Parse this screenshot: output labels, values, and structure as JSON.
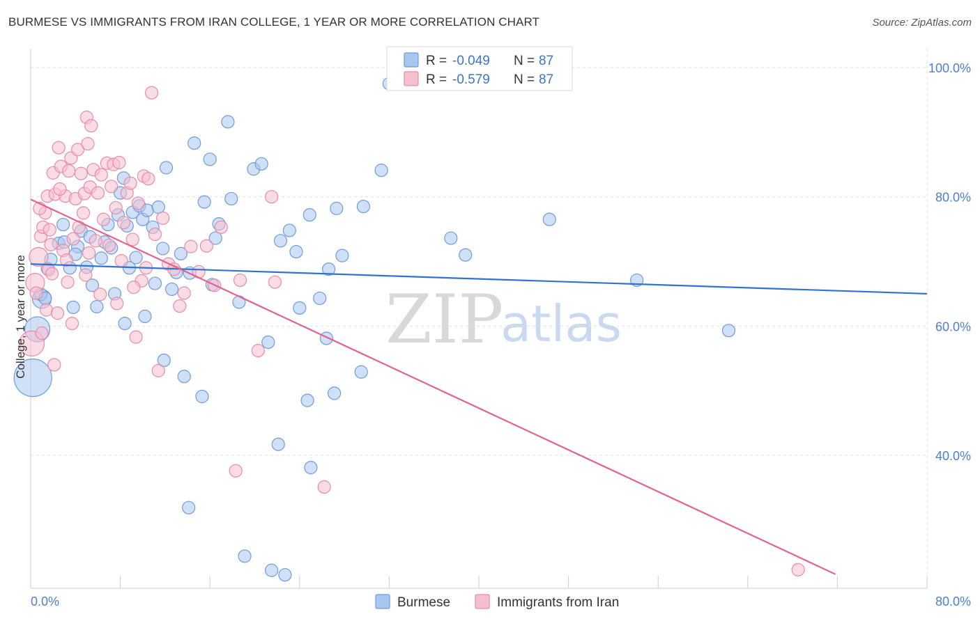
{
  "title": "BURMESE VS IMMIGRANTS FROM IRAN COLLEGE, 1 YEAR OR MORE CORRELATION CHART",
  "source": "Source: ZipAtlas.com",
  "watermark": {
    "zip": "ZIP",
    "atlas": "atlas"
  },
  "colors": {
    "burmese_fill": "#a9c6ee",
    "burmese_stroke": "#6f9bd9",
    "burmese_line": "#2f72d0",
    "iran_fill": "#f6bfd0",
    "iran_stroke": "#e98aa8",
    "iran_line": "#e2628d",
    "grid": "#e0e0e0",
    "axis_text": "#4a7fcf"
  },
  "legend": {
    "r_label": "R =",
    "n_label": "N =",
    "rows": [
      {
        "series": "Burmese",
        "r": "-0.049",
        "n": "87"
      },
      {
        "series": "Immigrants from Iran",
        "r": "-0.579",
        "n": "87"
      }
    ]
  },
  "chart_data": {
    "type": "scatter",
    "title": "BURMESE VS IMMIGRANTS FROM IRAN COLLEGE, 1 YEAR OR MORE CORRELATION CHART",
    "xlabel": "",
    "ylabel": "College, 1 year or more",
    "xlim": [
      0,
      80
    ],
    "ylim": [
      20,
      102
    ],
    "x_ticks": [
      {
        "v": 0,
        "label": "0.0%"
      },
      {
        "v": 80,
        "label": "80.0%"
      }
    ],
    "y_ticks": [
      {
        "v": 100,
        "label": "100.0%"
      },
      {
        "v": 80,
        "label": "80.0%"
      },
      {
        "v": 60,
        "label": "60.0%"
      },
      {
        "v": 40,
        "label": "40.0%"
      }
    ],
    "grid": true,
    "legend_position": "top-center",
    "series": [
      {
        "name": "Burmese",
        "trend": {
          "x": [
            0,
            80
          ],
          "y": [
            69.6,
            65.0
          ]
        },
        "points": [
          [
            0.2,
            52,
            3
          ],
          [
            0.6,
            59.5,
            2
          ],
          [
            1,
            64.2,
            1.5
          ],
          [
            1.5,
            68.9,
            1
          ],
          [
            1.8,
            70.3,
            1
          ],
          [
            2.5,
            72.8,
            1
          ],
          [
            2.9,
            75.7,
            1
          ],
          [
            0.9,
            64.9,
            1
          ],
          [
            1.3,
            64.3,
            1
          ],
          [
            3,
            73,
            1
          ],
          [
            3.5,
            69,
            1
          ],
          [
            4.2,
            72.3,
            1
          ],
          [
            4,
            71.1,
            1
          ],
          [
            4.5,
            74.7,
            1
          ],
          [
            5.3,
            73.8,
            1
          ],
          [
            5,
            69.1,
            1
          ],
          [
            5.5,
            66.3,
            1
          ],
          [
            6.3,
            70.5,
            1
          ],
          [
            6.6,
            73,
            1
          ],
          [
            6.9,
            75.7,
            1
          ],
          [
            7.2,
            72.1,
            1
          ],
          [
            7.5,
            65,
            1
          ],
          [
            7.8,
            77.2,
            1
          ],
          [
            8,
            80.6,
            1
          ],
          [
            8.3,
            82.9,
            1
          ],
          [
            8.6,
            75.5,
            1
          ],
          [
            8.8,
            69,
            1
          ],
          [
            9.1,
            77.6,
            1
          ],
          [
            9.4,
            70.6,
            1
          ],
          [
            9.7,
            78.6,
            1
          ],
          [
            10,
            76.5,
            1
          ],
          [
            10.4,
            77.9,
            1
          ],
          [
            10.9,
            75.3,
            1
          ],
          [
            11.1,
            66.6,
            1
          ],
          [
            11.4,
            78.4,
            1
          ],
          [
            11.8,
            72,
            1
          ],
          [
            12.1,
            84.5,
            1
          ],
          [
            12.6,
            65.7,
            1
          ],
          [
            13,
            68.3,
            1
          ],
          [
            13.4,
            71.2,
            1
          ],
          [
            13.7,
            52.2,
            1
          ],
          [
            11.9,
            54.7,
            1
          ],
          [
            14.2,
            68.2,
            1
          ],
          [
            14.6,
            88.3,
            1
          ],
          [
            15.3,
            49.1,
            1
          ],
          [
            15.5,
            79.2,
            1
          ],
          [
            16,
            85.8,
            1
          ],
          [
            16.5,
            73.6,
            1
          ],
          [
            16.8,
            75.8,
            1
          ],
          [
            17.6,
            91.6,
            1
          ],
          [
            17.9,
            79.7,
            1
          ],
          [
            18.6,
            63.7,
            1
          ],
          [
            19.1,
            24.4,
            1
          ],
          [
            19.9,
            84.3,
            1
          ],
          [
            20.6,
            85.1,
            1
          ],
          [
            21.2,
            57.5,
            1
          ],
          [
            21.5,
            22.2,
            1
          ],
          [
            22.1,
            41.7,
            1
          ],
          [
            22.3,
            73.2,
            1
          ],
          [
            22.7,
            21.5,
            1
          ],
          [
            23.1,
            74.8,
            1
          ],
          [
            23.7,
            71.5,
            1
          ],
          [
            24,
            62.8,
            1
          ],
          [
            24.7,
            48.5,
            1
          ],
          [
            24.9,
            77.2,
            1
          ],
          [
            25,
            38.1,
            1
          ],
          [
            25.8,
            64.3,
            1
          ],
          [
            26.4,
            58.1,
            1
          ],
          [
            26.6,
            68.8,
            1
          ],
          [
            27.1,
            49.6,
            1
          ],
          [
            27.3,
            78.2,
            1
          ],
          [
            27.8,
            70.9,
            1
          ],
          [
            29.5,
            52.9,
            1
          ],
          [
            29.7,
            78.5,
            1
          ],
          [
            31.3,
            84.1,
            1
          ],
          [
            32,
            97.5,
            1
          ],
          [
            37.5,
            73.6,
            1
          ],
          [
            38.8,
            71,
            1
          ],
          [
            46.3,
            76.5,
            1
          ],
          [
            54.1,
            67.1,
            1
          ],
          [
            62.3,
            59.3,
            1
          ],
          [
            14.1,
            31.9,
            1
          ],
          [
            5.9,
            63,
            1
          ],
          [
            8.4,
            60.4,
            1
          ],
          [
            10.2,
            61.5,
            1
          ],
          [
            3.8,
            62.9,
            1
          ],
          [
            16.2,
            66.4,
            1
          ]
        ]
      },
      {
        "name": "Immigrants from Iran",
        "trend": {
          "x": [
            0,
            80
          ],
          "y": [
            79.6,
            15.0
          ]
        },
        "points": [
          [
            0.1,
            57.3,
            2
          ],
          [
            0.4,
            66.7,
            1.5
          ],
          [
            0.7,
            70.7,
            1.5
          ],
          [
            0.9,
            73.9,
            1
          ],
          [
            1.1,
            75.3,
            1
          ],
          [
            1.3,
            77.5,
            1
          ],
          [
            1.5,
            80.1,
            1
          ],
          [
            1.6,
            68.7,
            1
          ],
          [
            1.8,
            72.6,
            1
          ],
          [
            2,
            83.7,
            1
          ],
          [
            2.2,
            80.4,
            1
          ],
          [
            2.5,
            87.6,
            1
          ],
          [
            2.7,
            84.7,
            1
          ],
          [
            2.9,
            71.7,
            1
          ],
          [
            3.1,
            80.1,
            1
          ],
          [
            3.3,
            66.8,
            1
          ],
          [
            3.4,
            84,
            1
          ],
          [
            3.6,
            86,
            1
          ],
          [
            3.8,
            73.5,
            1
          ],
          [
            4,
            79.7,
            1
          ],
          [
            4.2,
            87.3,
            1
          ],
          [
            4.3,
            75.3,
            1
          ],
          [
            4.5,
            83.6,
            1
          ],
          [
            4.7,
            77.5,
            1
          ],
          [
            4.8,
            80.5,
            1
          ],
          [
            5,
            92.3,
            1
          ],
          [
            5.1,
            88.2,
            1
          ],
          [
            5.3,
            81.5,
            1
          ],
          [
            5.4,
            91,
            1
          ],
          [
            5.6,
            84.2,
            1
          ],
          [
            5.8,
            73.2,
            1
          ],
          [
            6,
            80.6,
            1
          ],
          [
            6.3,
            83.4,
            1
          ],
          [
            6.5,
            76.5,
            1
          ],
          [
            6.8,
            85.2,
            1
          ],
          [
            7,
            72.5,
            1
          ],
          [
            7.2,
            81.6,
            1
          ],
          [
            7.4,
            85,
            1
          ],
          [
            7.6,
            78.3,
            1
          ],
          [
            7.9,
            85.3,
            1
          ],
          [
            8.1,
            70.1,
            1
          ],
          [
            8.3,
            76,
            1
          ],
          [
            8.6,
            80.6,
            1
          ],
          [
            8.9,
            82.1,
            1
          ],
          [
            9.1,
            73.4,
            1
          ],
          [
            9.4,
            58.3,
            1
          ],
          [
            9.6,
            79,
            1
          ],
          [
            9.9,
            67,
            1
          ],
          [
            10.1,
            83.2,
            1
          ],
          [
            10.3,
            69,
            1
          ],
          [
            10.5,
            82.8,
            1
          ],
          [
            10.8,
            96.1,
            1
          ],
          [
            11.1,
            74.2,
            1
          ],
          [
            11.4,
            53.1,
            1
          ],
          [
            11.8,
            76.7,
            1
          ],
          [
            12.3,
            69.6,
            1
          ],
          [
            12.8,
            68.8,
            1
          ],
          [
            13.3,
            63.1,
            1
          ],
          [
            13.7,
            65.1,
            1
          ],
          [
            14.3,
            72.3,
            1
          ],
          [
            15,
            68.4,
            1
          ],
          [
            15.7,
            72.4,
            1
          ],
          [
            16.4,
            66.3,
            1
          ],
          [
            17,
            75.3,
            1
          ],
          [
            18.3,
            37.6,
            1
          ],
          [
            18.7,
            67.1,
            1
          ],
          [
            20.3,
            56.2,
            1
          ],
          [
            21.5,
            80,
            1
          ],
          [
            21.8,
            66.8,
            1
          ],
          [
            26.2,
            35.1,
            1
          ],
          [
            68.5,
            22.3,
            1
          ],
          [
            1,
            58.9,
            1
          ],
          [
            2.1,
            54,
            1
          ],
          [
            3.7,
            60.4,
            1
          ],
          [
            0.5,
            65.1,
            1
          ],
          [
            1.4,
            62.5,
            1
          ],
          [
            2.4,
            62,
            1
          ],
          [
            6.2,
            64.9,
            1
          ],
          [
            4.9,
            67.9,
            1
          ],
          [
            7.7,
            63.5,
            1
          ],
          [
            1.9,
            68.1,
            1
          ],
          [
            9.2,
            66,
            1
          ],
          [
            0.8,
            78.2,
            1
          ],
          [
            1.7,
            74.9,
            1
          ],
          [
            3.2,
            70.2,
            1
          ],
          [
            5.2,
            71.3,
            1
          ],
          [
            2.6,
            81.2,
            1
          ]
        ]
      }
    ]
  }
}
